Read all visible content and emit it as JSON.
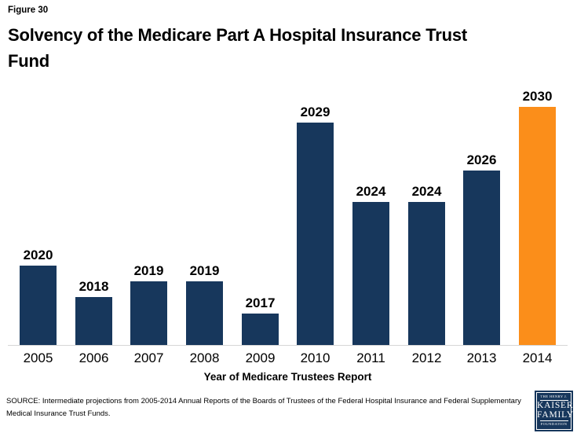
{
  "figure_label": "Figure 30",
  "title": "Solvency of the Medicare Part A Hospital Insurance Trust Fund",
  "title_lines": [
    "Solvency of the Medicare Part A Hospital Insurance Trust",
    "Fund"
  ],
  "chart_data": {
    "type": "bar",
    "title": "Solvency of the Medicare Part A Hospital Insurance Trust Fund",
    "categories": [
      "2005",
      "2006",
      "2007",
      "2008",
      "2009",
      "2010",
      "2011",
      "2012",
      "2013",
      "2014"
    ],
    "values": [
      2020,
      2018,
      2019,
      2019,
      2017,
      2029,
      2024,
      2024,
      2026,
      2030
    ],
    "xlabel": "Year of Medicare Trustees Report",
    "ylabel": "",
    "axis_base_year": 2015,
    "ylim": [
      2015,
      2031
    ],
    "grid": false,
    "legend": "none",
    "data_labels": "above bars",
    "highlight_index": 9,
    "colors": {
      "default": "#17375c",
      "highlight": "#fb8e1a"
    }
  },
  "footer": {
    "source": "SOURCE: Intermediate projections from 2005-2014 Annual Reports of the Boards of Trustees of the Federal Hospital Insurance and Federal Supplementary Medical Insurance Trust Funds."
  },
  "logo": {
    "line1": "THE HENRY J.",
    "line2": "KAISER",
    "line3": "FAMILY",
    "line4": "FOUNDATION"
  }
}
